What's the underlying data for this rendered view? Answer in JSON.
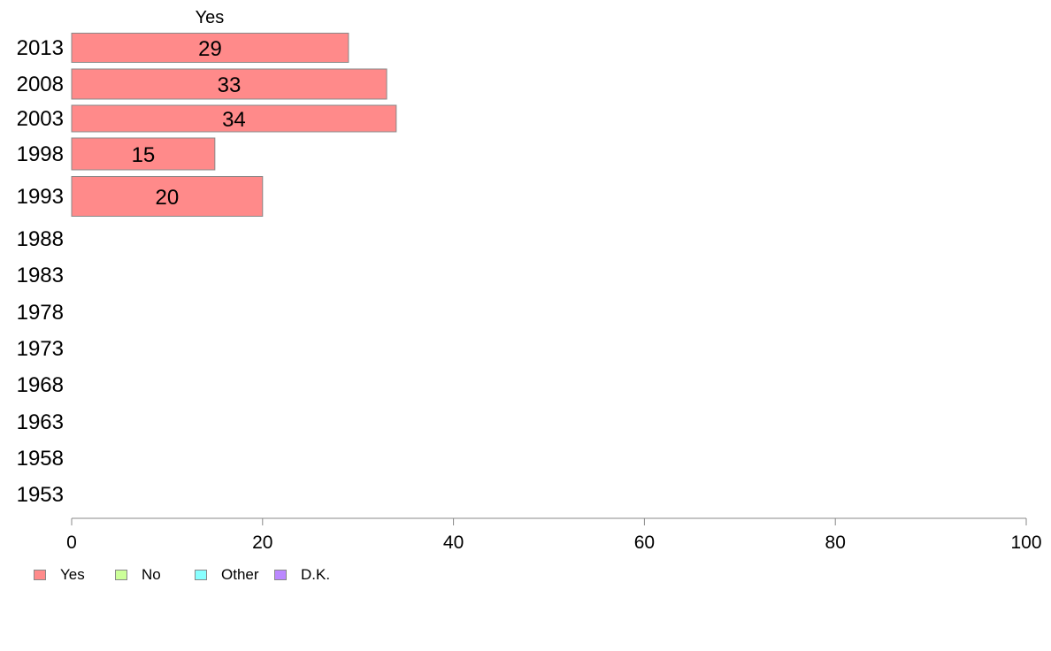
{
  "chart_data": {
    "type": "bar",
    "orientation": "horizontal",
    "stacked": true,
    "categories": [
      "2013",
      "2008",
      "2003",
      "1998",
      "1993",
      "1988",
      "1983",
      "1978",
      "1973",
      "1968",
      "1963",
      "1958",
      "1953"
    ],
    "series": [
      {
        "name": "Yes",
        "color": "#ff8a8a",
        "values": [
          29,
          33,
          34,
          15,
          20,
          null,
          null,
          null,
          null,
          null,
          null,
          null,
          null
        ]
      },
      {
        "name": "No",
        "color": "#ccff99",
        "values": [
          null,
          null,
          null,
          null,
          null,
          null,
          null,
          null,
          null,
          null,
          null,
          null,
          null
        ]
      },
      {
        "name": "Other",
        "color": "#88ffff",
        "values": [
          null,
          null,
          null,
          null,
          null,
          null,
          null,
          null,
          null,
          null,
          null,
          null,
          null
        ]
      },
      {
        "name": "D.K.",
        "color": "#bb88ff",
        "values": [
          null,
          null,
          null,
          null,
          null,
          null,
          null,
          null,
          null,
          null,
          null,
          null,
          null
        ]
      }
    ],
    "data_labels": [
      "29",
      "33",
      "34",
      "15",
      "20"
    ],
    "column_header": "Yes",
    "xlim": [
      0,
      100
    ],
    "xticks": [
      0,
      20,
      40,
      60,
      80,
      100
    ],
    "grid": false,
    "legend_position": "bottom-left"
  },
  "legend": {
    "items": [
      {
        "label": "Yes",
        "color": "#ff8a8a"
      },
      {
        "label": "No",
        "color": "#ccff99"
      },
      {
        "label": "Other",
        "color": "#88ffff"
      },
      {
        "label": "D.K.",
        "color": "#bb88ff"
      }
    ]
  }
}
